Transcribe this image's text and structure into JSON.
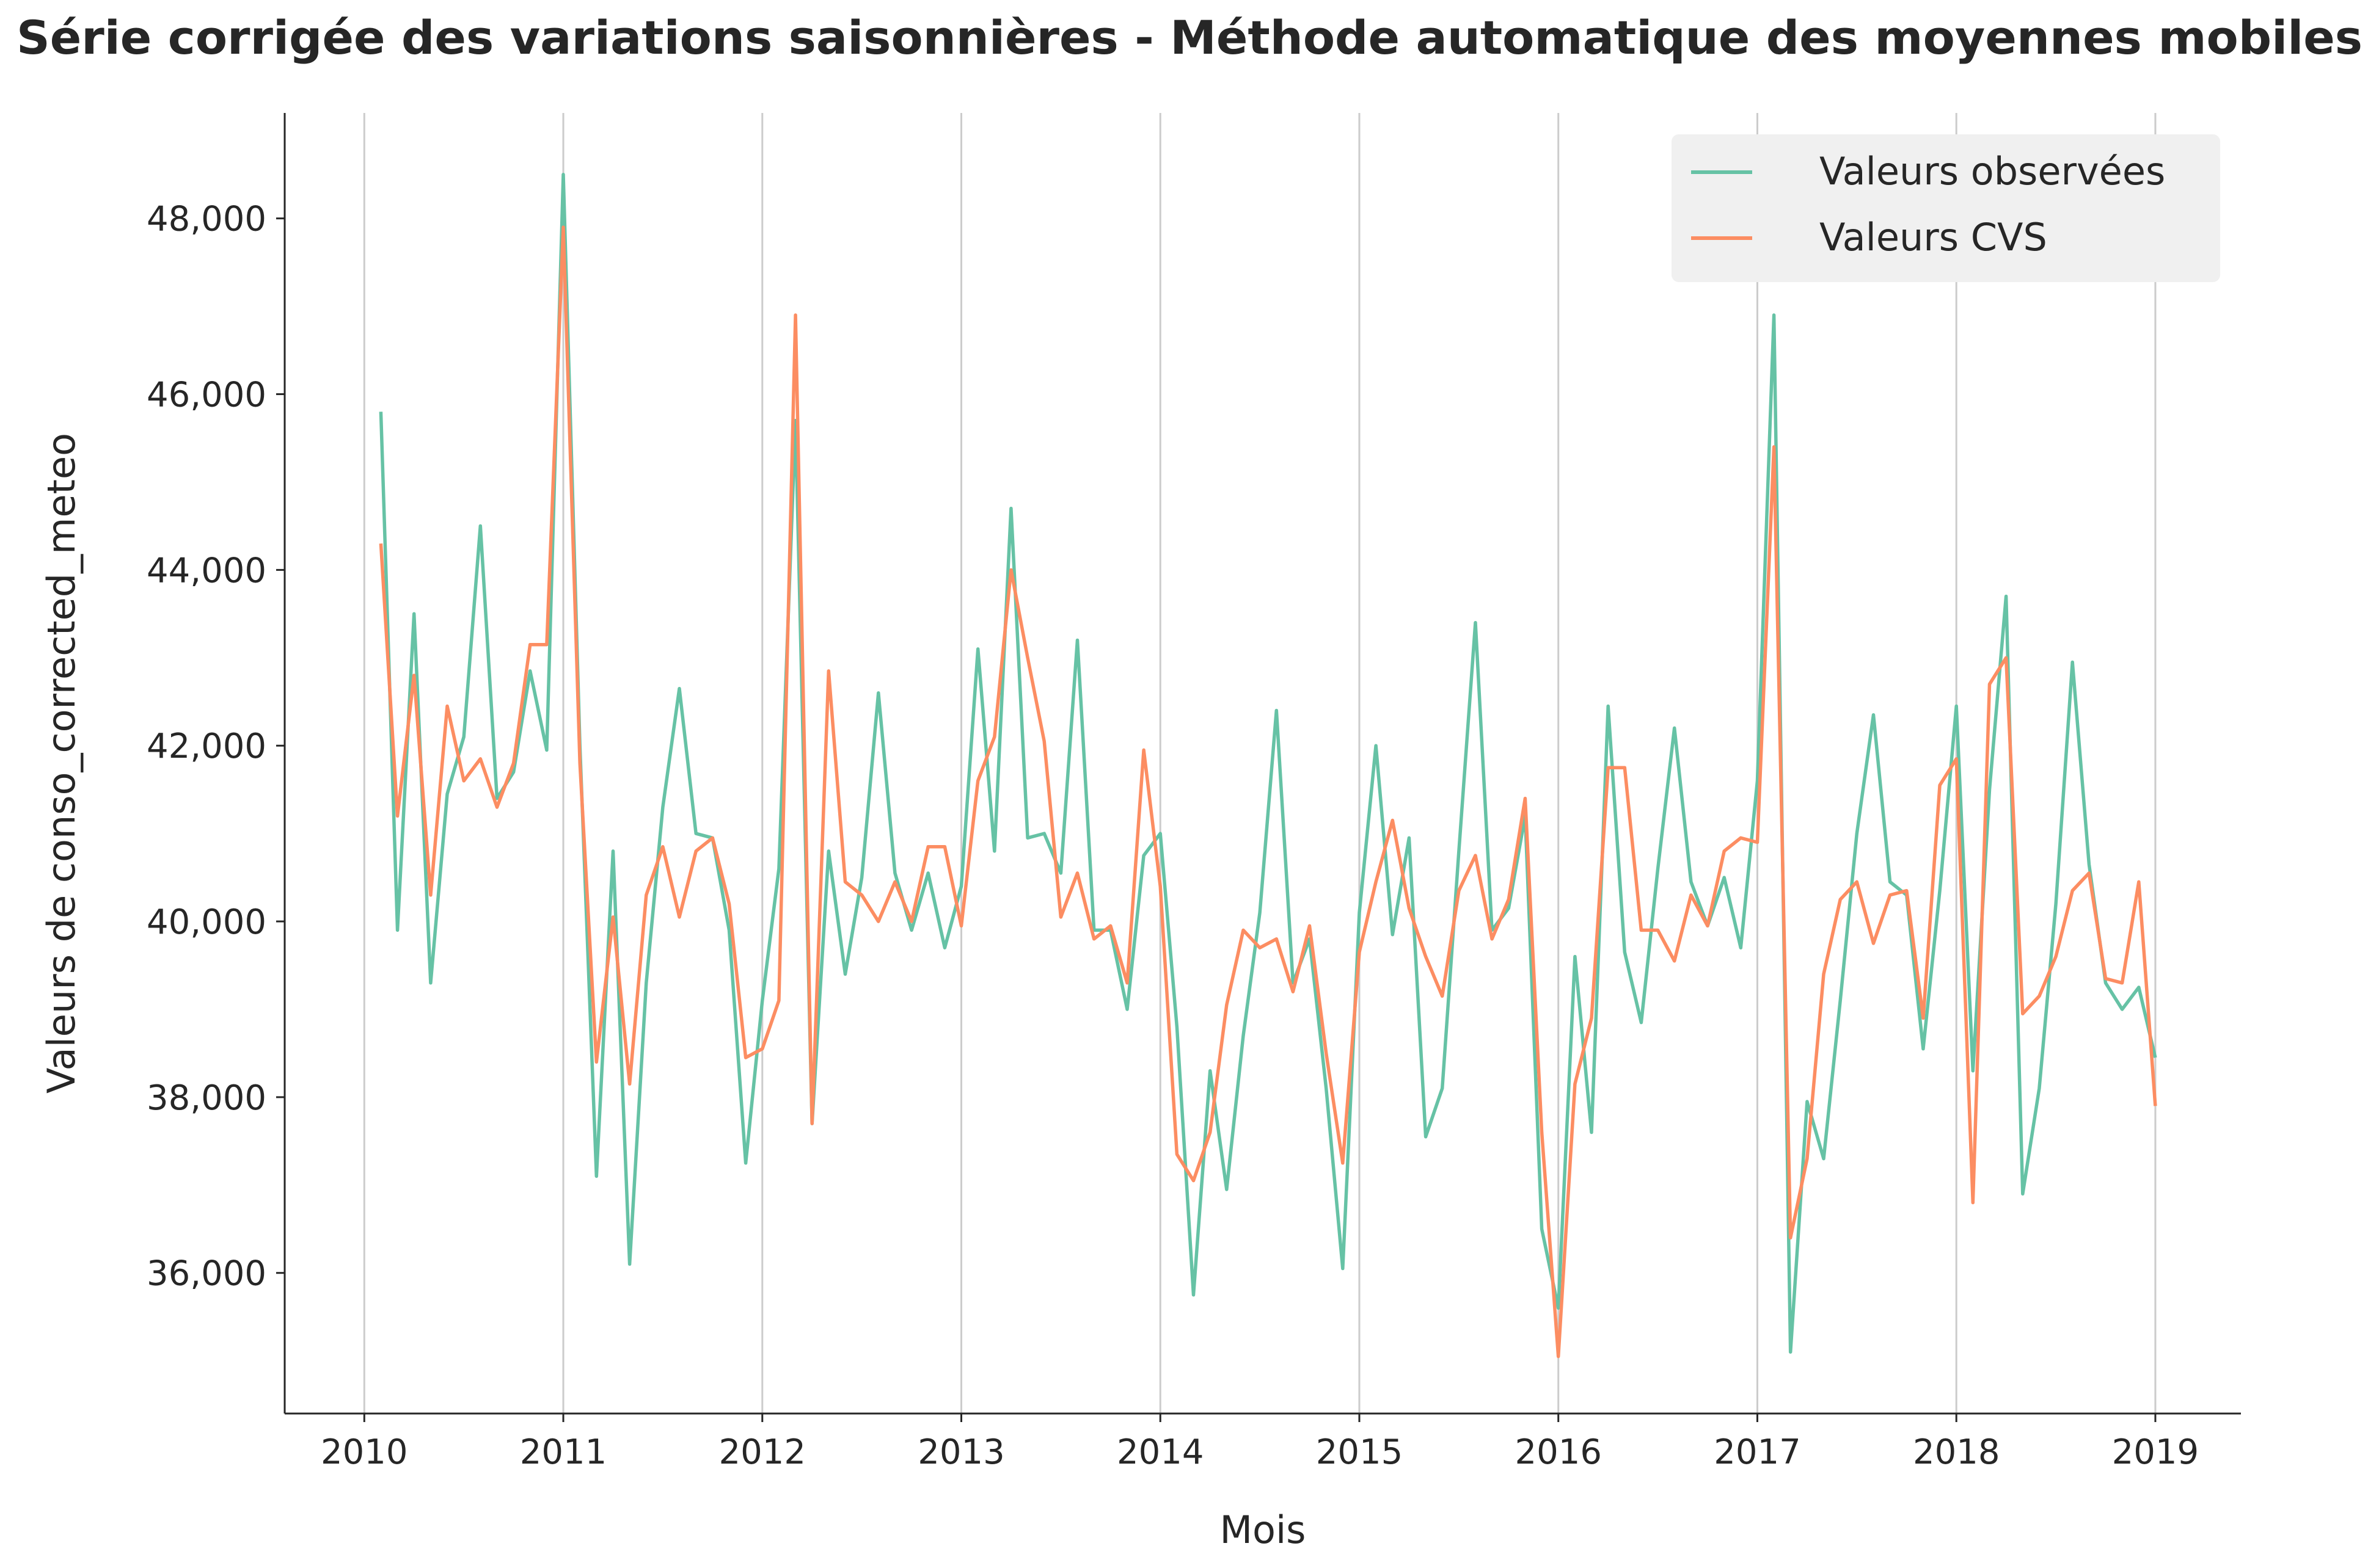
{
  "chart_data": {
    "type": "line",
    "title": "Série corrigée des variations saisonnières - Méthode automatique des moyennes mobiles",
    "xlabel": "Mois",
    "ylabel": "Valeurs de conso_corrected_meteo",
    "x_ticks": [
      "2010",
      "2011",
      "2012",
      "2013",
      "2014",
      "2015",
      "2016",
      "2017",
      "2018",
      "2019"
    ],
    "y_ticks": [
      "36,000",
      "38,000",
      "40,000",
      "42,000",
      "44,000",
      "46,000",
      "48,000"
    ],
    "y_tick_values": [
      36000,
      38000,
      40000,
      42000,
      44000,
      46000,
      48000
    ],
    "x_tick_values": [
      2010,
      2011,
      2012,
      2013,
      2014,
      2015,
      2016,
      2017,
      2018,
      2019
    ],
    "xlim": [
      2009.6,
      2019.43
    ],
    "ylim": [
      34400,
      49200
    ],
    "grid": "vertical",
    "legend_position": "top-right",
    "x_start": "2010-02",
    "x_step": "1 month",
    "series": [
      {
        "name": "Valeurs observées",
        "color": "#66c2a5",
        "values": [
          45800,
          39900,
          43500,
          39300,
          41450,
          42100,
          44500,
          41400,
          41700,
          42850,
          41950,
          48500,
          42000,
          37100,
          40800,
          36100,
          39300,
          41300,
          42650,
          41000,
          40950,
          39900,
          37250,
          39100,
          40600,
          45700,
          37700,
          40800,
          39400,
          40500,
          42600,
          40550,
          39900,
          40550,
          39700,
          40400,
          43100,
          40800,
          44700,
          40950,
          41000,
          40550,
          43200,
          39900,
          39900,
          39000,
          40750,
          41000,
          38800,
          35750,
          38300,
          36950,
          38700,
          40100,
          42400,
          39300,
          39800,
          38100,
          36050,
          40100,
          42000,
          39850,
          40950,
          37550,
          38100,
          40800,
          43400,
          39900,
          40150,
          41200,
          36500,
          35600,
          39600,
          37600,
          42450,
          39650,
          38850,
          40600,
          42200,
          40450,
          39950,
          40500,
          39700,
          41600,
          46900,
          35100,
          37950,
          37300,
          39100,
          41000,
          42350,
          40450,
          40300,
          38550,
          40350,
          42450,
          38300,
          41500,
          43700,
          36900,
          38100,
          40200,
          42950,
          40650,
          39300,
          39000,
          39250,
          38450
        ]
      },
      {
        "name": "Valeurs CVS",
        "color": "#fc8d62",
        "values": [
          44300,
          41200,
          42800,
          40300,
          42450,
          41600,
          41850,
          41300,
          41800,
          43150,
          43150,
          47900,
          41800,
          38400,
          40050,
          38150,
          40300,
          40850,
          40050,
          40800,
          40950,
          40200,
          38450,
          38550,
          39100,
          46900,
          37700,
          42850,
          40450,
          40300,
          40000,
          40450,
          40000,
          40850,
          40850,
          39950,
          41600,
          42100,
          44000,
          43000,
          42050,
          40050,
          40550,
          39800,
          39950,
          39300,
          41950,
          40400,
          37350,
          37050,
          37600,
          39050,
          39900,
          39700,
          39800,
          39200,
          39950,
          38500,
          37250,
          39650,
          40450,
          41150,
          40150,
          39600,
          39150,
          40350,
          40750,
          39800,
          40250,
          41400,
          37600,
          35050,
          38150,
          38900,
          41750,
          41750,
          39900,
          39900,
          39550,
          40300,
          39950,
          40800,
          40950,
          40900,
          45400,
          36400,
          37300,
          39400,
          40250,
          40450,
          39750,
          40300,
          40350,
          38900,
          41550,
          41850,
          36800,
          42700,
          43000,
          38950,
          39150,
          39600,
          40350,
          40550,
          39350,
          39300,
          40450,
          37900
        ]
      }
    ]
  }
}
